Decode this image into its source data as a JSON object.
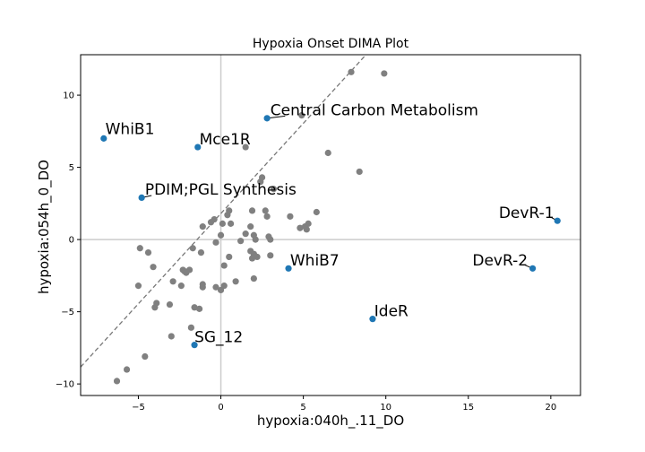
{
  "chart_data": {
    "type": "scatter",
    "title": "Hypoxia Onset DIMA Plot",
    "xlabel": "hypoxia:040h_.11_DO",
    "ylabel": "hypoxia:054h_0_DO",
    "xlim": [
      -8.5,
      21.8
    ],
    "ylim": [
      -10.8,
      12.8
    ],
    "xticks": [
      -5,
      0,
      5,
      10,
      15,
      20
    ],
    "yticks": [
      -10,
      -5,
      0,
      5,
      10
    ],
    "reference_lines": {
      "x": 0,
      "y": 0
    },
    "fit_line": {
      "slope": 1.25,
      "intercept": 1.8,
      "style": "dashed"
    },
    "colors": {
      "background_points": "#808080",
      "highlight_points": "#1f77b4",
      "zero_lines": "#cccccc",
      "fit_line": "#777777"
    },
    "background_points": [
      [
        7.9,
        11.6
      ],
      [
        9.9,
        11.5
      ],
      [
        4.9,
        8.6
      ],
      [
        6.5,
        6.0
      ],
      [
        1.5,
        6.4
      ],
      [
        8.4,
        4.7
      ],
      [
        2.5,
        4.3
      ],
      [
        2.4,
        4.0
      ],
      [
        3.2,
        3.5
      ],
      [
        2.7,
        2.0
      ],
      [
        1.9,
        2.0
      ],
      [
        0.5,
        2.0
      ],
      [
        0.4,
        1.7
      ],
      [
        2.8,
        1.6
      ],
      [
        4.2,
        1.6
      ],
      [
        5.8,
        1.9
      ],
      [
        -0.4,
        1.4
      ],
      [
        -0.6,
        1.2
      ],
      [
        0.1,
        1.1
      ],
      [
        0.6,
        1.1
      ],
      [
        5.3,
        1.1
      ],
      [
        -1.1,
        0.9
      ],
      [
        1.8,
        0.9
      ],
      [
        4.8,
        0.8
      ],
      [
        5.1,
        0.9
      ],
      [
        5.2,
        0.7
      ],
      [
        1.5,
        0.4
      ],
      [
        2.0,
        0.3
      ],
      [
        0.0,
        0.3
      ],
      [
        2.9,
        0.2
      ],
      [
        3.0,
        0.0
      ],
      [
        2.1,
        0.0
      ],
      [
        1.2,
        -0.1
      ],
      [
        -0.3,
        -0.2
      ],
      [
        -1.7,
        -0.6
      ],
      [
        -4.9,
        -0.6
      ],
      [
        -4.4,
        -0.9
      ],
      [
        -1.2,
        -0.9
      ],
      [
        1.8,
        -0.8
      ],
      [
        2.0,
        -1.0
      ],
      [
        2.2,
        -1.2
      ],
      [
        3.0,
        -1.1
      ],
      [
        0.5,
        -1.2
      ],
      [
        1.9,
        -1.3
      ],
      [
        0.2,
        -1.8
      ],
      [
        -4.1,
        -1.9
      ],
      [
        -2.3,
        -2.1
      ],
      [
        -2.2,
        -2.2
      ],
      [
        -1.9,
        -2.1
      ],
      [
        -2.1,
        -2.3
      ],
      [
        2.0,
        -2.7
      ],
      [
        -2.9,
        -2.9
      ],
      [
        0.9,
        -2.9
      ],
      [
        -5.0,
        -3.2
      ],
      [
        -2.4,
        -3.2
      ],
      [
        -1.1,
        -3.1
      ],
      [
        -1.1,
        -3.3
      ],
      [
        0.2,
        -3.2
      ],
      [
        -0.3,
        -3.3
      ],
      [
        0.0,
        -3.5
      ],
      [
        -3.9,
        -4.4
      ],
      [
        -3.1,
        -4.5
      ],
      [
        -4.0,
        -4.7
      ],
      [
        -1.6,
        -4.7
      ],
      [
        -1.3,
        -4.8
      ],
      [
        -1.8,
        -6.1
      ],
      [
        -3.0,
        -6.7
      ],
      [
        -4.6,
        -8.1
      ],
      [
        -5.7,
        -9.0
      ],
      [
        -6.3,
        -9.8
      ]
    ],
    "highlighted": [
      {
        "x": -7.1,
        "y": 7.0,
        "label": "WhiB1",
        "lx": -7.0,
        "ly": 7.3,
        "anchor": "start",
        "leader": false
      },
      {
        "x": 2.8,
        "y": 8.4,
        "label": "Central Carbon Metabolism",
        "lx": 3.0,
        "ly": 8.6,
        "anchor": "start",
        "leader": true,
        "lex": 3.9,
        "ley": 8.55
      },
      {
        "x": -1.4,
        "y": 6.4,
        "label": "Mce1R",
        "lx": -1.3,
        "ly": 6.6,
        "anchor": "start",
        "leader": false
      },
      {
        "x": -4.8,
        "y": 2.9,
        "label": "PDIM;PGL Synthesis",
        "lx": -4.6,
        "ly": 3.1,
        "anchor": "start",
        "leader": true,
        "lex": -4.2,
        "ley": 3.05
      },
      {
        "x": 20.4,
        "y": 1.3,
        "label": "DevR-1",
        "lx": 20.2,
        "ly": 1.5,
        "anchor": "end",
        "leader": true,
        "lex": 20.0,
        "ley": 1.55
      },
      {
        "x": 4.1,
        "y": -2.0,
        "label": "WhiB7",
        "lx": 4.2,
        "ly": -1.8,
        "anchor": "start",
        "leader": false
      },
      {
        "x": 18.9,
        "y": -2.0,
        "label": "DevR-2",
        "lx": 18.6,
        "ly": -1.8,
        "anchor": "end",
        "leader": true,
        "lex": 18.4,
        "ley": -1.75
      },
      {
        "x": 9.2,
        "y": -5.5,
        "label": "IdeR",
        "lx": 9.3,
        "ly": -5.3,
        "anchor": "start",
        "leader": false
      },
      {
        "x": -1.6,
        "y": -7.3,
        "label": "SG_12",
        "lx": -1.6,
        "ly": -7.1,
        "anchor": "start",
        "leader": false
      }
    ]
  }
}
